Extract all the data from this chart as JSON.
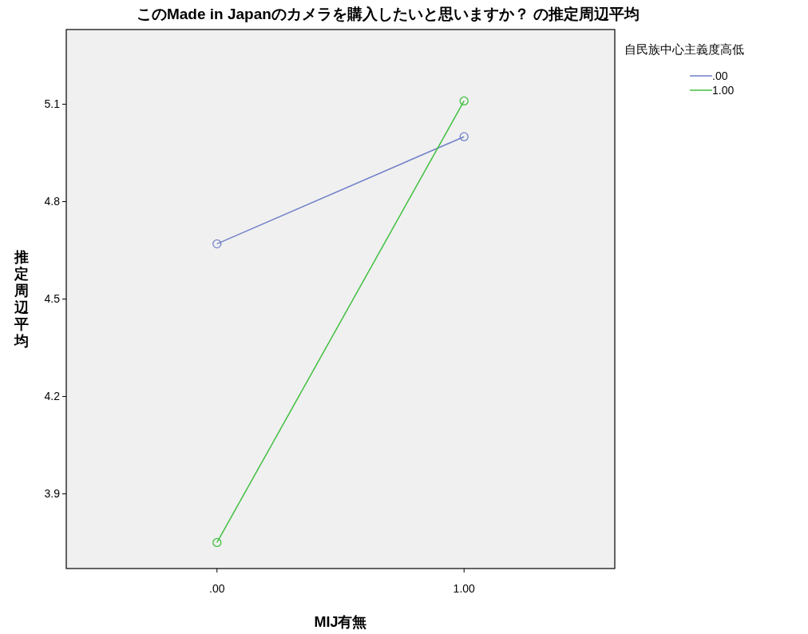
{
  "chart_data": {
    "type": "line",
    "title": "このMade in Japanのカメラを購入したいと思いますか？ の推定周辺平均",
    "xlabel": "MIJ有無",
    "ylabel": "推定周辺平均",
    "legend_title": "自民族中心主義度高低",
    "categories": [
      ".00",
      "1.00"
    ],
    "series": [
      {
        "name": ".00",
        "color": "#7080c8",
        "values": [
          4.67,
          5.0
        ]
      },
      {
        "name": "1.00",
        "color": "#40c040",
        "values": [
          3.75,
          5.11
        ]
      }
    ],
    "ylim": [
      3.67,
      5.33
    ],
    "yticks": [
      3.9,
      4.2,
      4.5,
      4.8,
      5.1
    ],
    "marker": "circle",
    "legend": "top right"
  }
}
